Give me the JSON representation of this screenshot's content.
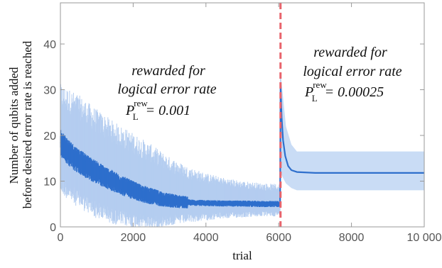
{
  "chart_data": {
    "type": "line",
    "xlabel": "trial",
    "ylabel_lines": [
      "Number of qubits added",
      "before desired error rate is reached"
    ],
    "xlim": [
      0,
      10000
    ],
    "ylim": [
      0,
      49
    ],
    "x_ticks": [
      0,
      2000,
      4000,
      6000,
      8000,
      10000
    ],
    "x_tick_labels": [
      "0",
      "2000",
      "4000",
      "6000",
      "8000",
      "10 000"
    ],
    "y_ticks": [
      0,
      10,
      20,
      30,
      40
    ],
    "y_tick_labels": [
      "0",
      "10",
      "20",
      "30",
      "40"
    ],
    "vertical_marker": {
      "x": 6050,
      "style": "dashed",
      "color": "#e8636b"
    },
    "colors": {
      "mean_line": "#2e6fcc",
      "band": "#c9dcf5",
      "band_spikes": "#b4cdf0",
      "frame": "#999999"
    },
    "series": [
      {
        "kind": "mean",
        "points": [
          [
            0,
            18.5
          ],
          [
            200,
            16.5
          ],
          [
            400,
            15.0
          ],
          [
            600,
            13.8
          ],
          [
            800,
            12.8
          ],
          [
            1000,
            11.9
          ],
          [
            1200,
            11.0
          ],
          [
            1400,
            10.2
          ],
          [
            1600,
            9.4
          ],
          [
            1800,
            8.7
          ],
          [
            2000,
            8.0
          ],
          [
            2200,
            7.4
          ],
          [
            2400,
            6.9
          ],
          [
            2600,
            6.5
          ],
          [
            2800,
            6.1
          ],
          [
            3000,
            5.8
          ],
          [
            3300,
            5.5
          ],
          [
            3600,
            5.3
          ],
          [
            4000,
            5.2
          ],
          [
            4500,
            5.1
          ],
          [
            5000,
            5.1
          ],
          [
            5500,
            5.0
          ],
          [
            6000,
            5.0
          ],
          [
            6040,
            5.0
          ],
          [
            6050,
            31.0
          ],
          [
            6080,
            24.0
          ],
          [
            6120,
            19.0
          ],
          [
            6180,
            15.5
          ],
          [
            6260,
            13.3
          ],
          [
            6350,
            12.4
          ],
          [
            6500,
            12.0
          ],
          [
            7000,
            11.8
          ],
          [
            8000,
            11.8
          ],
          [
            9000,
            11.8
          ],
          [
            10000,
            11.8
          ]
        ]
      },
      {
        "kind": "band",
        "points": [
          [
            0,
            11.0,
            26.0
          ],
          [
            500,
            8.0,
            23.5
          ],
          [
            1000,
            5.5,
            20.5
          ],
          [
            1500,
            4.0,
            18.0
          ],
          [
            2000,
            3.0,
            16.0
          ],
          [
            2500,
            2.5,
            14.0
          ],
          [
            3000,
            2.6,
            12.0
          ],
          [
            3500,
            2.8,
            10.5
          ],
          [
            4000,
            3.0,
            9.5
          ],
          [
            4500,
            3.2,
            8.8
          ],
          [
            5000,
            3.3,
            8.3
          ],
          [
            5500,
            3.4,
            8.0
          ],
          [
            6000,
            3.4,
            7.8
          ],
          [
            6040,
            3.4,
            7.8
          ],
          [
            6050,
            12.0,
            34.0
          ],
          [
            6100,
            11.0,
            30.0
          ],
          [
            6200,
            9.5,
            22.0
          ],
          [
            6350,
            8.5,
            18.0
          ],
          [
            6500,
            8.0,
            16.5
          ],
          [
            10000,
            8.0,
            16.5
          ]
        ]
      }
    ],
    "annotations": [
      {
        "lines": [
          "rewarded  for",
          "logical error rate"
        ],
        "formula_main": "P",
        "formula_sub": "L",
        "formula_sup": "rew",
        "formula_value": "= 0.001"
      },
      {
        "lines": [
          "rewarded  for",
          "logical error rate"
        ],
        "formula_main": "P",
        "formula_sub": "L",
        "formula_sup": "rew",
        "formula_value": "= 0.00025"
      }
    ]
  }
}
